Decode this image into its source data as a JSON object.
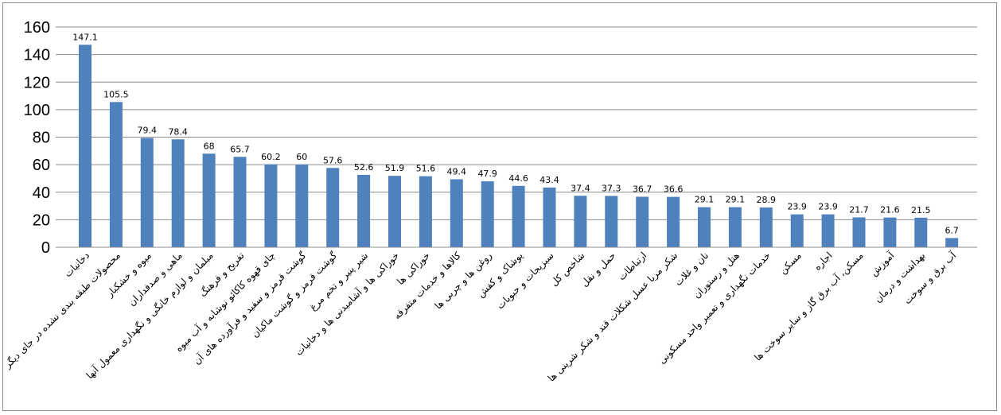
{
  "chart_data": {
    "type": "bar",
    "title": "",
    "xlabel": "",
    "ylabel": "",
    "ylim": [
      0,
      160
    ],
    "yticks": [
      0,
      20,
      40,
      60,
      80,
      100,
      120,
      140,
      160
    ],
    "grid": true,
    "legend": "none",
    "bar_color": "#4f81bd",
    "categories": [
      "دخانیات",
      "محصولات طبقه بندی نشده در جای دیگر",
      "میوه و خشکبار",
      "ماهی و صدفداران",
      "مبلمان و لوازم خانگی و نگهداری معمول آنها",
      "تفریح و فرهنگ",
      "چای قهوه کاکائو نوشابه و آب میوه",
      "گوشت قرمز و سفید و فرآورده های آن",
      "گوشت قرمز و گوشت ماکیان",
      "شیر پنیر و تخم مرغ",
      "خوراکی ها و آشامیدنی ها و دخانیات",
      "خوراکی ها",
      "کالاها و خدمات متفرقه",
      "روغن ها و چربی ها",
      "پوشاک و کفش",
      "سبزیجات و حبوبات",
      "شاخص کل",
      "حمل و نقل",
      "ارتباطات",
      "شکر مربا عسل شکلات قند و شکر شرینی ها",
      "نان و غلات",
      "هتل و رستوران",
      "خدمات نگهداری و تعمیر واحد مسکونی",
      "مسکن",
      "اجاره",
      "مسکن، آب برق گاز و سایر سوخت ها",
      "آموزش",
      "بهداشت و درمان",
      "آب برق و سوخت"
    ],
    "values": [
      147.1,
      105.5,
      79.4,
      78.4,
      68,
      65.7,
      60.2,
      60,
      57.6,
      52.6,
      51.9,
      51.6,
      49.4,
      47.9,
      44.6,
      43.4,
      37.4,
      37.3,
      36.7,
      36.6,
      29.1,
      29.1,
      28.9,
      23.9,
      23.9,
      21.7,
      21.6,
      21.5,
      6.7
    ],
    "data_labels": [
      "147.1",
      "105.5",
      "79.4",
      "78.4",
      "68",
      "65.7",
      "60.2",
      "60",
      "57.6",
      "52.6",
      "51.9",
      "51.6",
      "49.4",
      "47.9",
      "44.6",
      "43.4",
      "37.4",
      "37.3",
      "36.7",
      "36.6",
      "29.1",
      "29.1",
      "28.9",
      "23.9",
      "23.9",
      "21.7",
      "21.6",
      "21.5",
      "6.7"
    ]
  }
}
